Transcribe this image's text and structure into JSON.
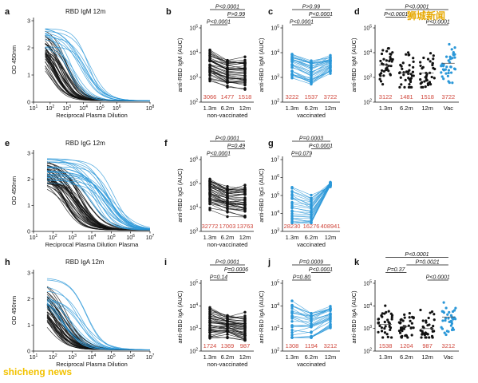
{
  "watermarks": {
    "top_right": "狮城新闻",
    "bottom_left": "shicheng news"
  },
  "colors": {
    "non_vaccinated": "#111111",
    "vaccinated": "#2a97d8",
    "value_label": "#d0473c"
  },
  "chart_data": [
    {
      "id": "a",
      "panel_label": "a",
      "type": "line",
      "title": "RBD IgM 12m",
      "xlabel": "Reciprocal Plasma Dilution",
      "ylabel": "OD 450nm",
      "x_scale": "log",
      "xlim": [
        10,
        100000000
      ],
      "ylim": [
        0,
        3
      ],
      "x_ticks": [
        {
          "base": "10",
          "exp": "1"
        },
        {
          "base": "10",
          "exp": "2"
        },
        {
          "base": "10",
          "exp": "3"
        },
        {
          "base": "10",
          "exp": "4"
        },
        {
          "base": "10",
          "exp": "5"
        },
        {
          "base": "10",
          "exp": "6"
        },
        {
          "base": "10",
          "exp": "8"
        }
      ],
      "y_ticks": [
        "0",
        "1",
        "2",
        "3"
      ],
      "series": [
        {
          "group": "non-vaccinated",
          "curve_count": 40,
          "midpoint_range": [
            60,
            1500
          ]
        },
        {
          "group": "vaccinated",
          "curve_count": 14,
          "midpoint_range": [
            800,
            30000
          ]
        }
      ]
    },
    {
      "id": "b",
      "panel_label": "b",
      "type": "scatter",
      "ylabel": "anti-RBD IgM (AUC)",
      "y_scale": "log",
      "ylim": [
        100,
        100000
      ],
      "y_ticks": [
        {
          "base": "10",
          "exp": "2"
        },
        {
          "base": "10",
          "exp": "3"
        },
        {
          "base": "10",
          "exp": "4"
        },
        {
          "base": "10",
          "exp": "5"
        }
      ],
      "categories": [
        "1.3m",
        "6.2m",
        "12m"
      ],
      "group_label": "non-vaccinated",
      "paired": true,
      "color": "#111111",
      "medians": [
        "3066",
        "1477",
        "1518"
      ],
      "pvalues": [
        {
          "text": "P<0.0001",
          "from": 0,
          "to": 2
        },
        {
          "text": "P>0.99",
          "from": 1,
          "to": 2
        },
        {
          "text": "P<0.0001",
          "from": 0,
          "to": 1
        }
      ],
      "n": 40,
      "spread": [
        10000,
        300
      ]
    },
    {
      "id": "c",
      "panel_label": "c",
      "type": "scatter",
      "ylabel": "anti-RBD IgM (AUC)",
      "y_scale": "log",
      "ylim": [
        100,
        100000
      ],
      "y_ticks": [
        {
          "base": "10",
          "exp": "2"
        },
        {
          "base": "10",
          "exp": "3"
        },
        {
          "base": "10",
          "exp": "4"
        },
        {
          "base": "10",
          "exp": "5"
        }
      ],
      "categories": [
        "1.3m",
        "6.2m",
        "12m"
      ],
      "group_label": "vaccinated",
      "paired": true,
      "color": "#2a97d8",
      "medians": [
        "3222",
        "1537",
        "3722"
      ],
      "pvalues": [
        {
          "text": "P>0.99",
          "from": 0,
          "to": 2
        },
        {
          "text": "P<0.0001",
          "from": 1,
          "to": 2
        },
        {
          "text": "P<0.0001",
          "from": 0,
          "to": 1
        }
      ],
      "n": 30,
      "spread": [
        10000,
        300
      ]
    },
    {
      "id": "d",
      "panel_label": "d",
      "type": "scatter",
      "ylabel": "anti-RBD IgM (AUC)",
      "y_scale": "log",
      "ylim": [
        100,
        100000
      ],
      "y_ticks": [
        {
          "base": "10",
          "exp": "2"
        },
        {
          "base": "10",
          "exp": "3"
        },
        {
          "base": "10",
          "exp": "4"
        },
        {
          "base": "10",
          "exp": "5"
        }
      ],
      "categories": [
        "1.3m",
        "6.2m",
        "12m",
        "Vac"
      ],
      "paired": false,
      "color": "#111111",
      "last_color": "#2a97d8",
      "medians": [
        "3122",
        "1481",
        "1518",
        "3722"
      ],
      "pvalues": [
        {
          "text": "P<0.0001",
          "from": 0,
          "to": 3
        },
        {
          "text": "P<0.0001",
          "from": 0,
          "to": 1
        },
        {
          "text": "P<0.0001",
          "from": 2,
          "to": 3
        }
      ],
      "n": 38,
      "spread": [
        9000,
        400
      ]
    },
    {
      "id": "e",
      "panel_label": "e",
      "type": "line",
      "title": "RBD IgG 12m",
      "xlabel": "Reciprocal Plasma Dilution Plasma",
      "ylabel": "OD 450nm",
      "x_scale": "log",
      "xlim": [
        10,
        10000000
      ],
      "ylim": [
        0,
        3
      ],
      "x_ticks": [
        {
          "base": "10",
          "exp": "1"
        },
        {
          "base": "10",
          "exp": "2"
        },
        {
          "base": "10",
          "exp": "3"
        },
        {
          "base": "10",
          "exp": "4"
        },
        {
          "base": "10",
          "exp": "5"
        },
        {
          "base": "10",
          "exp": "6"
        },
        {
          "base": "10",
          "exp": "7"
        }
      ],
      "y_ticks": [
        "0",
        "1",
        "2",
        "3"
      ],
      "series": [
        {
          "group": "non-vaccinated",
          "curve_count": 40,
          "midpoint_range": [
            300,
            6000
          ]
        },
        {
          "group": "vaccinated",
          "curve_count": 22,
          "midpoint_range": [
            8000,
            150000
          ]
        }
      ]
    },
    {
      "id": "f",
      "panel_label": "f",
      "type": "scatter",
      "ylabel": "anti-RBD IgG (AUC)",
      "y_scale": "log",
      "ylim": [
        1000,
        1000000
      ],
      "y_ticks": [
        {
          "base": "10",
          "exp": "3"
        },
        {
          "base": "10",
          "exp": "4"
        },
        {
          "base": "10",
          "exp": "5"
        },
        {
          "base": "10",
          "exp": "6"
        }
      ],
      "categories": [
        "1.3m",
        "6.2m",
        "12m"
      ],
      "group_label": "non-vaccinated",
      "paired": true,
      "color": "#111111",
      "medians": [
        "32772",
        "17003",
        "13763"
      ],
      "pvalues": [
        {
          "text": "P<0.0001",
          "from": 0,
          "to": 2
        },
        {
          "text": "P=0.49",
          "from": 1,
          "to": 2
        },
        {
          "text": "P<0.0001",
          "from": 0,
          "to": 1
        }
      ],
      "n": 40,
      "spread": [
        150000,
        4000
      ]
    },
    {
      "id": "g",
      "panel_label": "g",
      "type": "scatter",
      "ylabel": "anti-RBD IgG (AUC)",
      "y_scale": "log",
      "ylim": [
        1000,
        10000000
      ],
      "y_ticks": [
        {
          "base": "10",
          "exp": "3"
        },
        {
          "base": "10",
          "exp": "4"
        },
        {
          "base": "10",
          "exp": "5"
        },
        {
          "base": "10",
          "exp": "6"
        },
        {
          "base": "10",
          "exp": "7"
        }
      ],
      "categories": [
        "1.3m",
        "6.2m",
        "12m"
      ],
      "group_label": "vaccinated",
      "paired": true,
      "color": "#2a97d8",
      "medians": [
        "28230",
        "16276",
        "408941"
      ],
      "pvalues": [
        {
          "text": "P=0.0003",
          "from": 0,
          "to": 2
        },
        {
          "text": "P<0.0001",
          "from": 1,
          "to": 2
        },
        {
          "text": "P=0.079",
          "from": 0,
          "to": 1
        }
      ],
      "n": 26,
      "spread": [
        400000,
        3000
      ]
    },
    {
      "id": "h",
      "panel_label": "h",
      "type": "line",
      "title": "RBD IgA 12m",
      "xlabel": "Reciprocal Plasma Dilution",
      "ylabel": "OD 450nm",
      "x_scale": "log",
      "xlim": [
        10,
        10000000
      ],
      "ylim": [
        0,
        3
      ],
      "x_ticks": [
        {
          "base": "10",
          "exp": "1"
        },
        {
          "base": "10",
          "exp": "2"
        },
        {
          "base": "10",
          "exp": "3"
        },
        {
          "base": "10",
          "exp": "4"
        },
        {
          "base": "10",
          "exp": "5"
        },
        {
          "base": "10",
          "exp": "6"
        },
        {
          "base": "10",
          "exp": "7"
        }
      ],
      "y_ticks": [
        "0",
        "1",
        "2",
        "3"
      ],
      "series": [
        {
          "group": "non-vaccinated",
          "curve_count": 40,
          "midpoint_range": [
            40,
            600
          ]
        },
        {
          "group": "vaccinated",
          "curve_count": 14,
          "midpoint_range": [
            200,
            6000
          ]
        }
      ]
    },
    {
      "id": "i",
      "panel_label": "i",
      "type": "scatter",
      "ylabel": "anti-RBD IgA (AUC)",
      "y_scale": "log",
      "ylim": [
        100,
        100000
      ],
      "y_ticks": [
        {
          "base": "10",
          "exp": "2"
        },
        {
          "base": "10",
          "exp": "3"
        },
        {
          "base": "10",
          "exp": "4"
        },
        {
          "base": "10",
          "exp": "5"
        }
      ],
      "categories": [
        "1.3m",
        "6.2m",
        "12m"
      ],
      "group_label": "non-vaccinated",
      "paired": true,
      "color": "#111111",
      "medians": [
        "1724",
        "1369",
        "987"
      ],
      "pvalues": [
        {
          "text": "P<0.0001",
          "from": 0,
          "to": 2
        },
        {
          "text": "P=0.0006",
          "from": 1,
          "to": 2
        },
        {
          "text": "P=0.14",
          "from": 0,
          "to": 1
        }
      ],
      "n": 40,
      "spread": [
        8000,
        300
      ]
    },
    {
      "id": "j",
      "panel_label": "j",
      "type": "scatter",
      "ylabel": "anti-RBD IgA (AUC)",
      "y_scale": "log",
      "ylim": [
        100,
        100000
      ],
      "y_ticks": [
        {
          "base": "10",
          "exp": "2"
        },
        {
          "base": "10",
          "exp": "3"
        },
        {
          "base": "10",
          "exp": "4"
        },
        {
          "base": "10",
          "exp": "5"
        }
      ],
      "categories": [
        "1.3m",
        "6.2m",
        "12m"
      ],
      "group_label": "vaccinated",
      "paired": true,
      "color": "#2a97d8",
      "medians": [
        "1308",
        "1194",
        "3212"
      ],
      "pvalues": [
        {
          "text": "P=0.0009",
          "from": 0,
          "to": 2
        },
        {
          "text": "P<0.0001",
          "from": 1,
          "to": 2
        },
        {
          "text": "P=0.80",
          "from": 0,
          "to": 1
        }
      ],
      "n": 28,
      "spread": [
        15000,
        400
      ]
    },
    {
      "id": "k",
      "panel_label": "k",
      "type": "scatter",
      "ylabel": "anti-RBD IgA (AUC)",
      "y_scale": "log",
      "ylim": [
        100,
        100000
      ],
      "y_ticks": [
        {
          "base": "10",
          "exp": "2"
        },
        {
          "base": "10",
          "exp": "3"
        },
        {
          "base": "10",
          "exp": "4"
        },
        {
          "base": "10",
          "exp": "5"
        }
      ],
      "categories": [
        "1.3m",
        "6.2m",
        "12m",
        "Vac"
      ],
      "paired": false,
      "color": "#111111",
      "last_color": "#2a97d8",
      "medians": [
        "1538",
        "1204",
        "987",
        "3212"
      ],
      "pvalues": [
        {
          "text": "P<0.0001",
          "from": 0,
          "to": 3
        },
        {
          "text": "P=0.0021",
          "from": 1,
          "to": 3
        },
        {
          "text": "P=0.37",
          "from": 0,
          "to": 1
        },
        {
          "text": "P<0.0001",
          "from": 2,
          "to": 3
        }
      ],
      "n": 36,
      "spread": [
        8000,
        400
      ]
    }
  ]
}
